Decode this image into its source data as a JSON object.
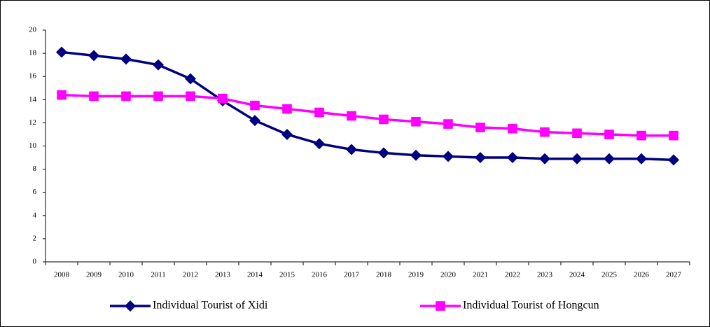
{
  "chart_data": {
    "type": "line",
    "categories": [
      "2008",
      "2009",
      "2010",
      "2011",
      "2012",
      "2013",
      "2014",
      "2015",
      "2016",
      "2017",
      "2018",
      "2019",
      "2020",
      "2021",
      "2022",
      "2023",
      "2024",
      "2025",
      "2026",
      "2027"
    ],
    "series": [
      {
        "name": "Individual Tourist of Xidi",
        "color": "#000080",
        "marker": "diamond",
        "values": [
          18.1,
          17.8,
          17.5,
          17.0,
          15.8,
          13.9,
          12.2,
          11.0,
          10.2,
          9.7,
          9.4,
          9.2,
          9.1,
          9.0,
          9.0,
          8.9,
          8.9,
          8.9,
          8.9,
          8.8
        ]
      },
      {
        "name": "Individual Tourist of Hongcun",
        "color": "#ff00ff",
        "marker": "square",
        "values": [
          14.4,
          14.3,
          14.3,
          14.3,
          14.3,
          14.1,
          13.5,
          13.2,
          12.9,
          12.6,
          12.3,
          12.1,
          11.9,
          11.6,
          11.5,
          11.2,
          11.1,
          11.0,
          10.9,
          10.9
        ]
      }
    ],
    "ylim": [
      0,
      20
    ],
    "yticks": [
      0,
      2,
      4,
      6,
      8,
      10,
      12,
      14,
      16,
      18,
      20
    ],
    "legend": "bottom",
    "grid": false
  }
}
